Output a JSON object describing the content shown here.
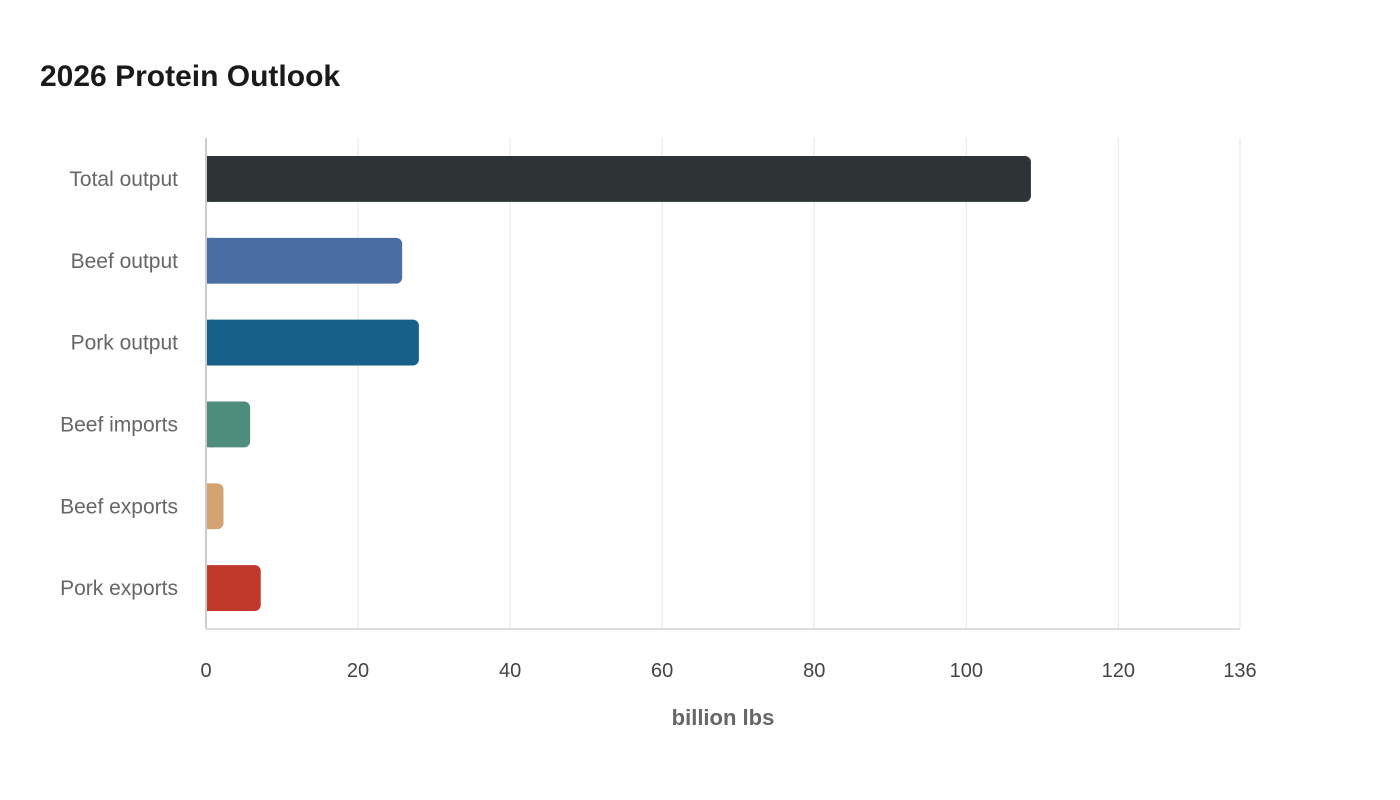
{
  "chart_data": {
    "type": "bar",
    "orientation": "horizontal",
    "title": "2026 Protein Outlook",
    "xlabel": "billion lbs",
    "ylabel": "",
    "xlim": [
      0,
      136
    ],
    "x_ticks": [
      0,
      20,
      40,
      60,
      80,
      100,
      120,
      136
    ],
    "grid": true,
    "legend": "none",
    "categories": [
      "Total output",
      "Beef output",
      "Pork output",
      "Beef imports",
      "Beef exports",
      "Pork exports"
    ],
    "values": [
      108.5,
      25.8,
      28.0,
      5.8,
      2.3,
      7.2
    ],
    "colors": [
      "#2e3436",
      "#4a6da4",
      "#17608a",
      "#4e8c7b",
      "#d4a373",
      "#c0392b"
    ]
  }
}
